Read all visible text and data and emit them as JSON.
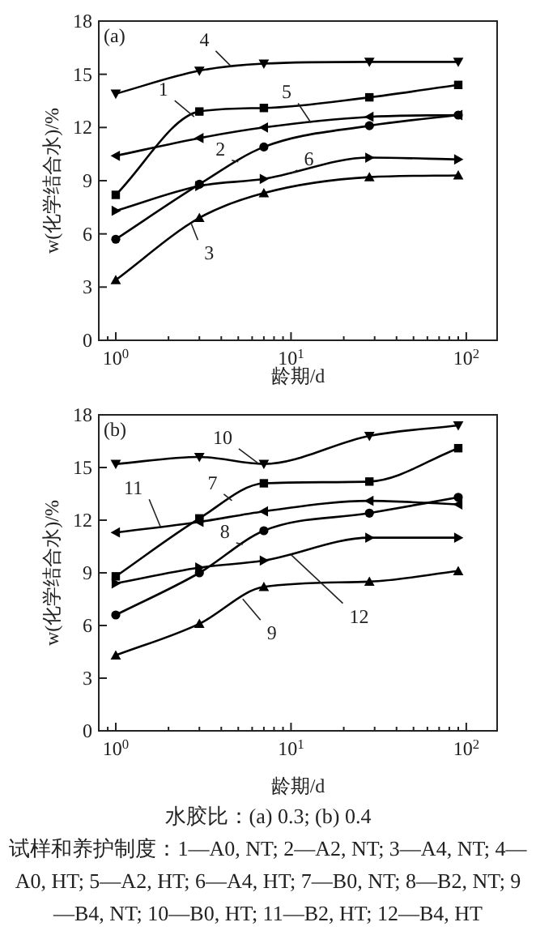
{
  "chart_data": [
    {
      "type": "line",
      "title": "(a)",
      "xlabel": "龄期/d",
      "ylabel": "w(化学结合水)/%",
      "log": "x",
      "x": [
        1,
        3,
        7,
        28,
        90
      ],
      "xlim": [
        0.8,
        150
      ],
      "xticks": [
        {
          "value": 1,
          "label": "10$^{0}$"
        },
        {
          "value": 10,
          "label": "10$^{1}$"
        },
        {
          "value": 100,
          "label": "10$^{2}$"
        }
      ],
      "ylim": [
        0,
        18
      ],
      "yticks": [
        0,
        3,
        6,
        9,
        12,
        15,
        18
      ],
      "grid": false,
      "line_style": "solid",
      "series": [
        {
          "name": "1",
          "color": "#000000",
          "marker": "square",
          "values": [
            8.2,
            12.9,
            13.1,
            13.7,
            14.4
          ]
        },
        {
          "name": "2",
          "color": "#000000",
          "marker": "circle",
          "values": [
            5.7,
            8.8,
            10.9,
            12.1,
            12.7
          ]
        },
        {
          "name": "3",
          "color": "#000000",
          "marker": "triangle",
          "values": [
            3.4,
            6.9,
            8.3,
            9.2,
            9.3
          ]
        },
        {
          "name": "4",
          "color": "#000000",
          "marker": "triangle-down",
          "values": [
            13.9,
            15.2,
            15.6,
            15.7,
            15.7
          ]
        },
        {
          "name": "5",
          "color": "#000000",
          "marker": "triangle-left",
          "values": [
            10.4,
            11.4,
            12.0,
            12.6,
            12.7
          ]
        },
        {
          "name": "6",
          "color": "#000000",
          "marker": "triangle-right",
          "values": [
            7.3,
            8.7,
            9.1,
            10.3,
            10.2
          ]
        }
      ]
    },
    {
      "type": "line",
      "title": "(b)",
      "xlabel": "龄期/d",
      "ylabel": "w(化学结合水)/%",
      "log": "x",
      "x": [
        1,
        3,
        7,
        28,
        90
      ],
      "xlim": [
        0.8,
        150
      ],
      "xticks": [
        {
          "value": 1,
          "label": "10$^{0}$"
        },
        {
          "value": 10,
          "label": "10$^{1}$"
        },
        {
          "value": 100,
          "label": "10$^{2}$"
        }
      ],
      "ylim": [
        0,
        18
      ],
      "yticks": [
        0,
        3,
        6,
        9,
        12,
        15,
        18
      ],
      "grid": false,
      "line_style": "solid",
      "annotations": [
        "水胶比：(a) 0.3; (b) 0.4",
        "试样和养护制度：1—A0, NT; 2—A2, NT; 3—A4, NT; 4—A0, HT; 5—A2, HT; 6—A4, HT; 7—B0, NT; 8—B2, NT; 9—B4, NT; 10—B0, HT; 11—B2, HT; 12—B4, HT"
      ],
      "series": [
        {
          "name": "7",
          "color": "#000000",
          "marker": "square",
          "values": [
            8.8,
            12.1,
            14.1,
            14.2,
            16.1
          ]
        },
        {
          "name": "8",
          "color": "#000000",
          "marker": "circle",
          "values": [
            6.6,
            9.0,
            11.4,
            12.4,
            13.3
          ]
        },
        {
          "name": "9",
          "color": "#000000",
          "marker": "triangle",
          "values": [
            4.3,
            6.1,
            8.2,
            8.5,
            9.1
          ]
        },
        {
          "name": "10",
          "color": "#000000",
          "marker": "triangle-down",
          "values": [
            15.2,
            15.6,
            15.2,
            16.8,
            17.4
          ]
        },
        {
          "name": "11",
          "color": "#000000",
          "marker": "triangle-left",
          "values": [
            11.3,
            11.9,
            12.5,
            13.1,
            12.9
          ]
        },
        {
          "name": "12",
          "color": "#000000",
          "marker": "triangle-right",
          "values": [
            8.4,
            9.3,
            9.7,
            11.0,
            11.0
          ]
        }
      ]
    }
  ]
}
